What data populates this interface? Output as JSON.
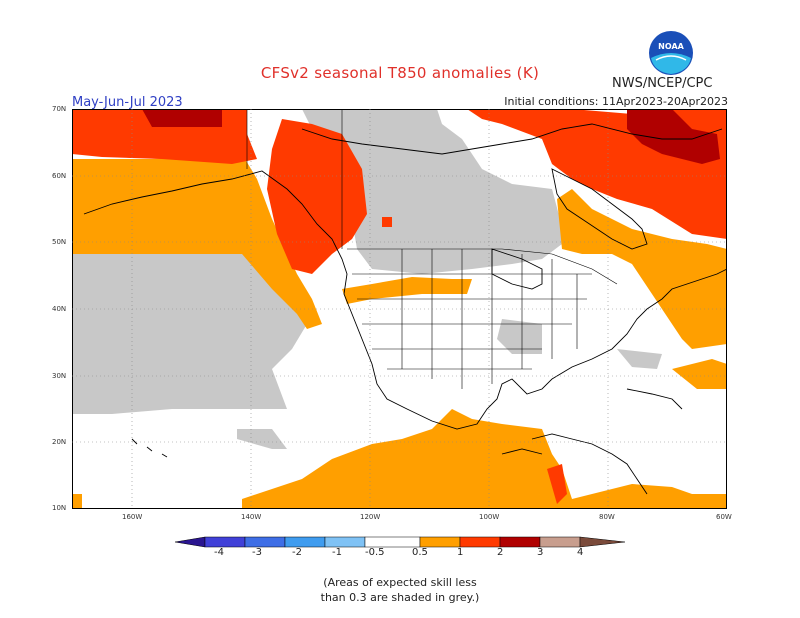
{
  "header": {
    "title": "CFSv2 seasonal T850 anomalies (K)",
    "agency": "NWS/NCEP/CPC",
    "period": "May-Jun-Jul 2023",
    "initial_conditions": "Initial conditions: 11Apr2023-20Apr2023"
  },
  "logo": {
    "text": "NOAA",
    "icon": "noaa-logo-icon"
  },
  "map": {
    "lat_labels": [
      "70N",
      "60N",
      "50N",
      "40N",
      "30N",
      "20N",
      "10N"
    ],
    "lon_labels": [
      "160W",
      "140W",
      "120W",
      "100W",
      "80W",
      "60W"
    ]
  },
  "legend": {
    "labels": [
      "-4",
      "-3",
      "-2",
      "-1",
      "-0.5",
      "0.5",
      "1",
      "2",
      "3",
      "4"
    ],
    "colors": {
      "lt_m4": "#2a1590",
      "m4_m3": "#4040d8",
      "m3_m2": "#3e6ee6",
      "m2_m1": "#3f9cef",
      "m1_m05": "#7fc2f5",
      "neutral": "#ffffff",
      "p05_p1": "#ff9f00",
      "p1_p2": "#ff3a00",
      "p2_p3": "#b00000",
      "p3_p4": "#c89e8e",
      "gt_p4": "#7a4a3a",
      "low_skill": "#c8c8c8"
    }
  },
  "note": {
    "line1": "(Areas of expected skill less",
    "line2": "than 0.3 are shaded in grey.)"
  }
}
